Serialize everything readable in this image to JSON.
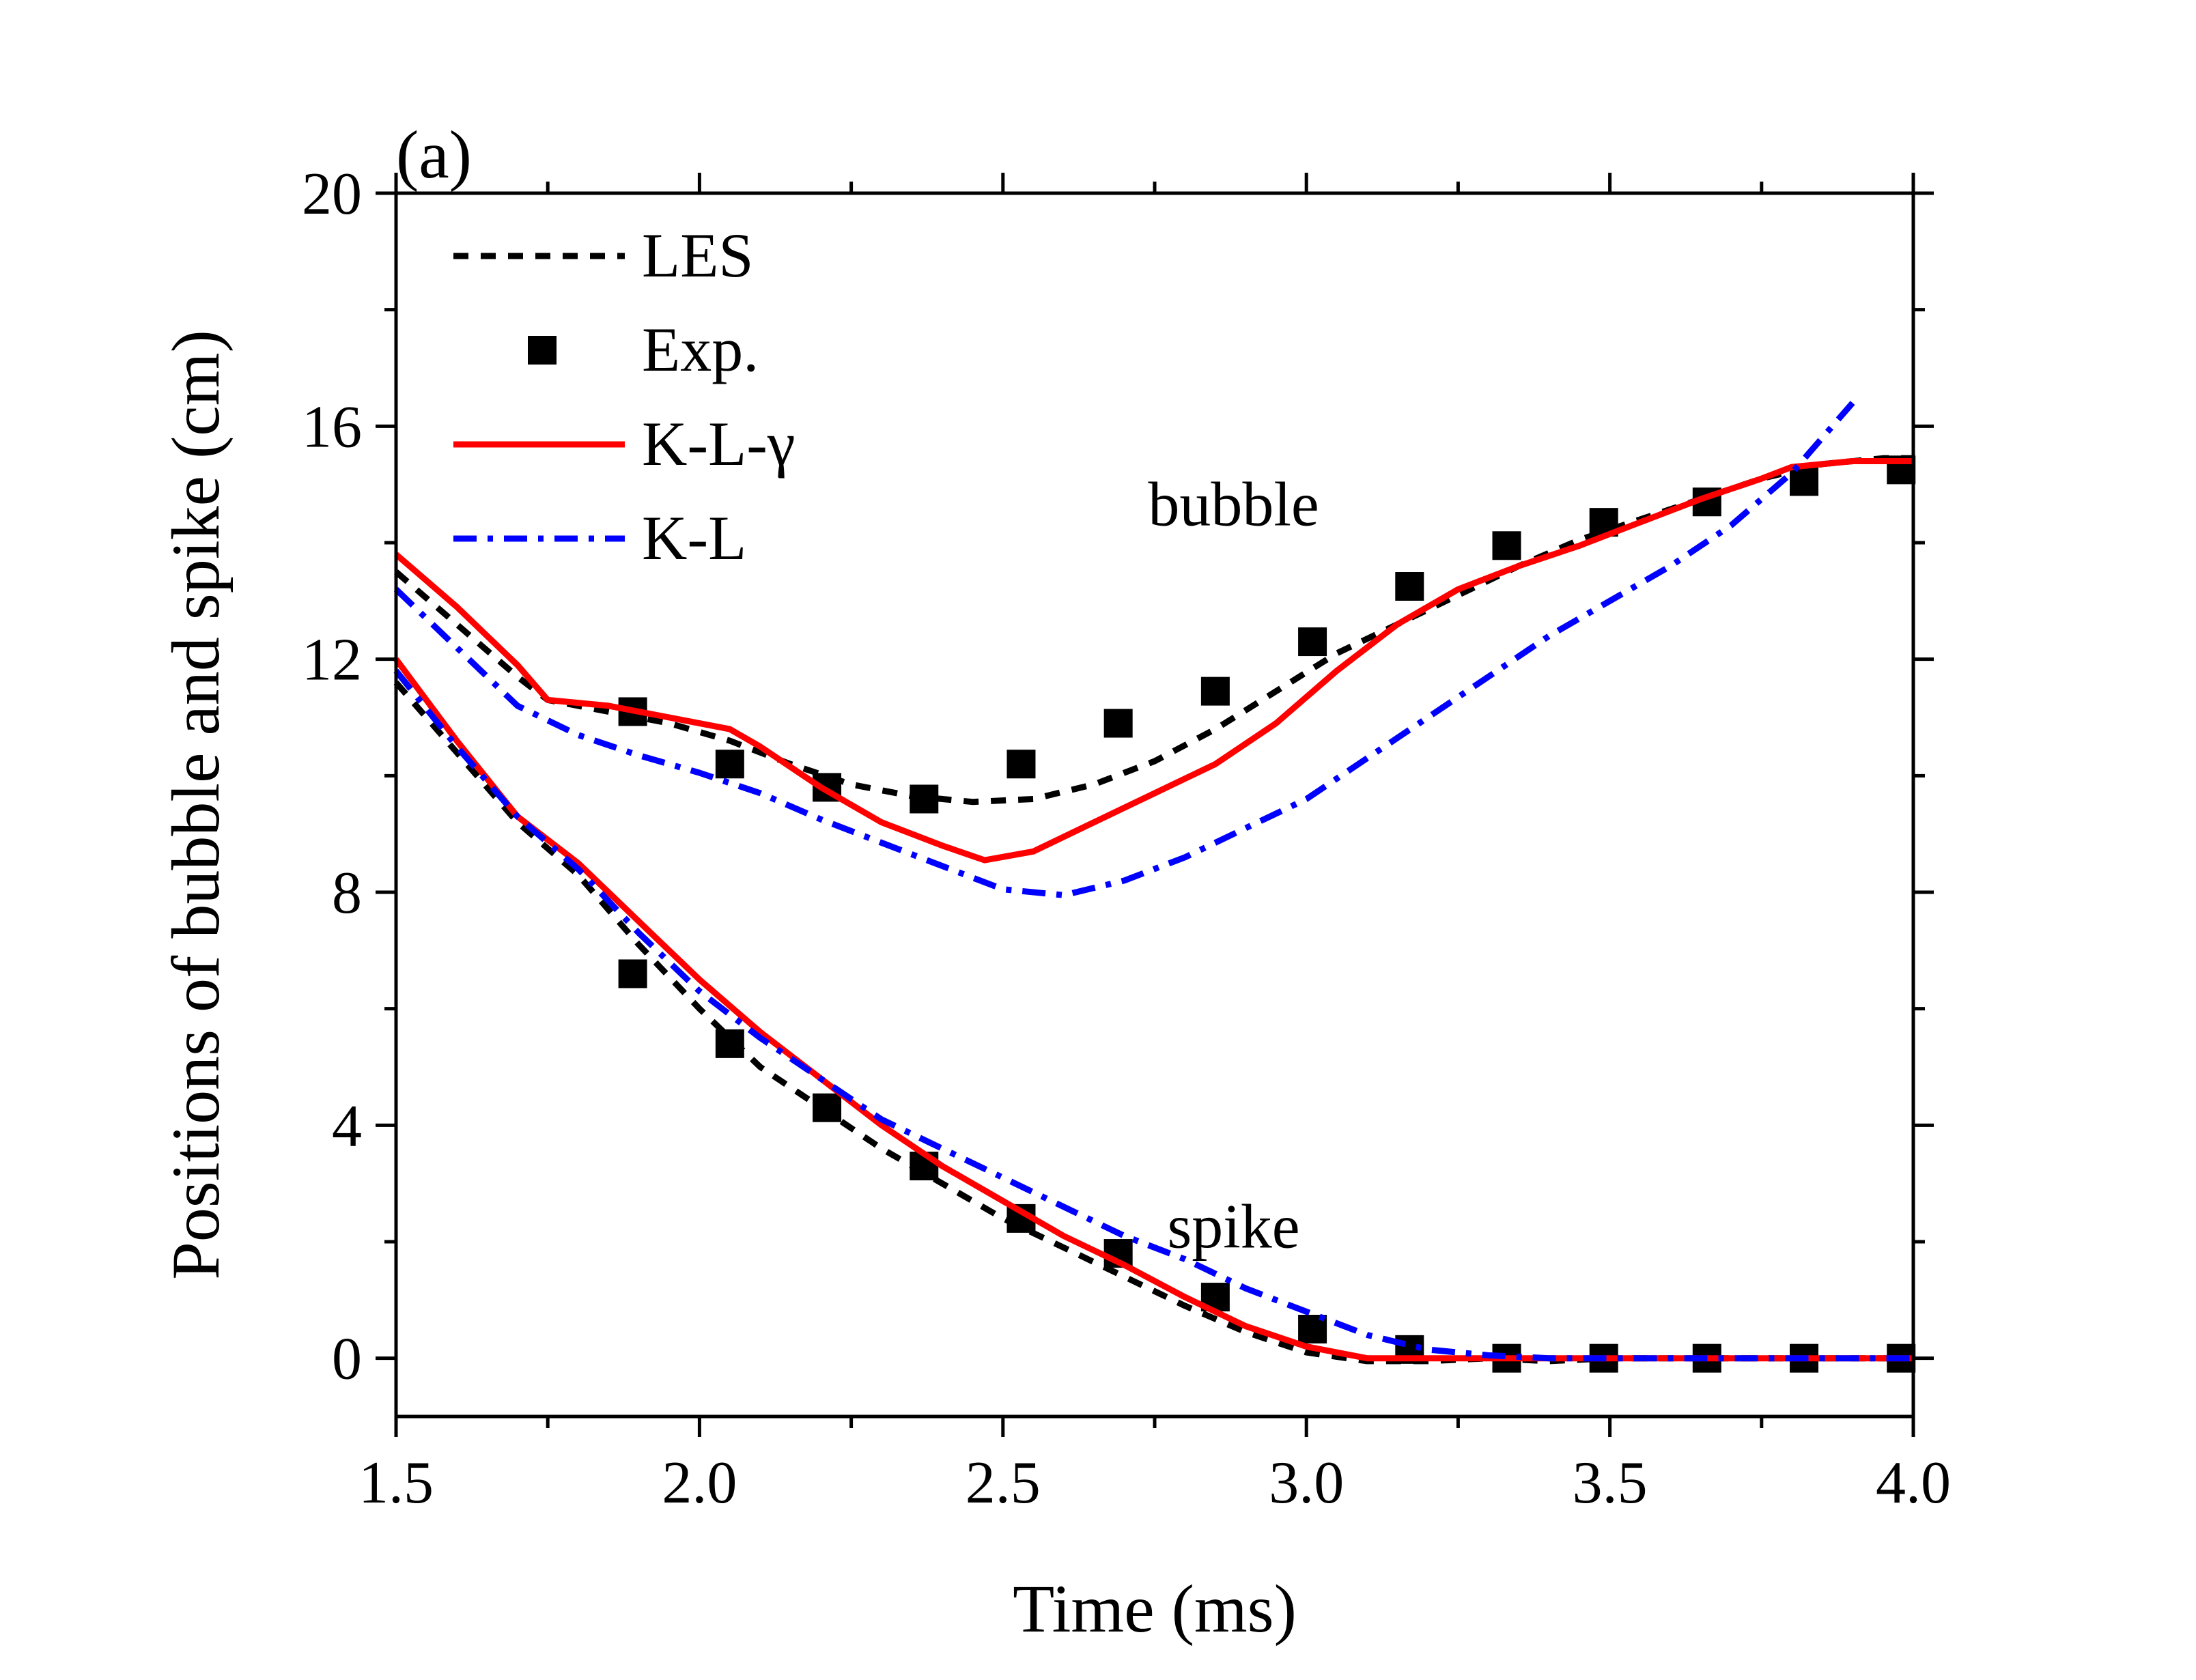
{
  "chart_data": {
    "type": "line",
    "panel_label": "(a)",
    "title": "",
    "xlabel": "Time (ms)",
    "ylabel": "Positions of bubble and spike (cm)",
    "xlim": [
      1.5,
      4.0
    ],
    "ylim": [
      -1,
      20
    ],
    "xticks": [
      1.5,
      2.0,
      2.5,
      3.0,
      3.5,
      4.0
    ],
    "xtick_labels": [
      "1.5",
      "2.0",
      "2.5",
      "3.0",
      "3.5",
      "4.0"
    ],
    "yticks": [
      0,
      4,
      8,
      12,
      16,
      20
    ],
    "ytick_labels": [
      "0",
      "4",
      "8",
      "12",
      "16",
      "20"
    ],
    "grid": false,
    "legend_position": "top-left",
    "annotations": [
      {
        "text": "bubble",
        "x": 2.88,
        "y": 14.3
      },
      {
        "text": "spike",
        "x": 2.88,
        "y": 1.9
      }
    ],
    "series": [
      {
        "name": "LES",
        "style": "dashed",
        "color": "#000000",
        "groups": [
          {
            "label": "bubble",
            "x": [
              1.5,
              1.6,
              1.7,
              1.75,
              1.85,
              1.95,
              2.05,
              2.15,
              2.25,
              2.35,
              2.45,
              2.55,
              2.65,
              2.75,
              2.85,
              2.95,
              3.05,
              3.15,
              3.25,
              3.35,
              3.45,
              3.55,
              3.65,
              3.75,
              3.85,
              3.95,
              4.0
            ],
            "y": [
              13.5,
              12.6,
              11.7,
              11.3,
              11.1,
              10.9,
              10.6,
              10.2,
              9.85,
              9.65,
              9.55,
              9.6,
              9.85,
              10.25,
              10.8,
              11.45,
              12.1,
              12.6,
              13.1,
              13.6,
              14.05,
              14.4,
              14.75,
              15.1,
              15.35,
              15.45,
              15.45
            ]
          },
          {
            "label": "spike",
            "x": [
              1.5,
              1.6,
              1.7,
              1.8,
              1.9,
              2.0,
              2.1,
              2.2,
              2.3,
              2.4,
              2.5,
              2.6,
              2.7,
              2.8,
              2.9,
              3.0,
              3.1,
              3.2,
              3.3,
              3.4,
              3.5,
              3.7,
              3.9,
              4.0
            ],
            "y": [
              11.6,
              10.4,
              9.2,
              8.3,
              7.1,
              6.0,
              5.0,
              4.3,
              3.6,
              3.0,
              2.4,
              1.9,
              1.4,
              0.9,
              0.45,
              0.1,
              -0.05,
              -0.05,
              0.0,
              -0.05,
              0.0,
              0.0,
              0.0,
              0.0
            ]
          }
        ]
      },
      {
        "name": "Exp.",
        "style": "markers",
        "marker": "square",
        "color": "#000000",
        "groups": [
          {
            "label": "bubble",
            "x": [
              1.89,
              2.05,
              2.21,
              2.37,
              2.53,
              2.69,
              2.85,
              3.01,
              3.17,
              3.33,
              3.49,
              3.66,
              3.82,
              3.98
            ],
            "y": [
              11.1,
              10.2,
              9.8,
              9.6,
              10.2,
              10.9,
              11.45,
              12.3,
              13.25,
              13.95,
              14.35,
              14.7,
              15.05,
              15.25
            ]
          },
          {
            "label": "spike",
            "x": [
              1.89,
              2.05,
              2.21,
              2.37,
              2.53,
              2.69,
              2.85,
              3.01,
              3.17,
              3.33,
              3.49,
              3.66,
              3.82,
              3.98
            ],
            "y": [
              6.6,
              5.4,
              4.3,
              3.3,
              2.4,
              1.8,
              1.05,
              0.5,
              0.15,
              0.0,
              0.0,
              0.0,
              0.0,
              0.0
            ]
          }
        ]
      },
      {
        "name": "K-L-γ",
        "style": "solid",
        "color": "#ff0000",
        "groups": [
          {
            "label": "bubble",
            "x": [
              1.5,
              1.6,
              1.7,
              1.75,
              1.85,
              1.95,
              2.05,
              2.1,
              2.2,
              2.3,
              2.4,
              2.47,
              2.55,
              2.65,
              2.75,
              2.85,
              2.95,
              3.05,
              3.15,
              3.25,
              3.35,
              3.45,
              3.55,
              3.65,
              3.75,
              3.8,
              3.9,
              4.0
            ],
            "y": [
              13.8,
              12.9,
              11.9,
              11.3,
              11.2,
              11.0,
              10.8,
              10.5,
              9.8,
              9.2,
              8.8,
              8.55,
              8.7,
              9.2,
              9.7,
              10.2,
              10.9,
              11.8,
              12.6,
              13.2,
              13.6,
              13.95,
              14.35,
              14.75,
              15.1,
              15.3,
              15.4,
              15.4
            ]
          },
          {
            "label": "spike",
            "x": [
              1.5,
              1.6,
              1.7,
              1.8,
              1.9,
              2.0,
              2.1,
              2.2,
              2.3,
              2.4,
              2.5,
              2.6,
              2.7,
              2.8,
              2.9,
              3.0,
              3.1,
              3.2,
              3.3,
              3.4,
              3.5,
              3.7,
              3.9,
              4.0
            ],
            "y": [
              12.0,
              10.6,
              9.3,
              8.5,
              7.5,
              6.5,
              5.6,
              4.8,
              4.0,
              3.3,
              2.7,
              2.1,
              1.6,
              1.05,
              0.55,
              0.2,
              0.0,
              0.0,
              0.0,
              0.0,
              0.0,
              0.0,
              0.0,
              0.0
            ]
          }
        ]
      },
      {
        "name": "K-L",
        "style": "dashdot",
        "color": "#0000ff",
        "groups": [
          {
            "label": "bubble",
            "x": [
              1.5,
              1.6,
              1.7,
              1.8,
              1.9,
              2.0,
              2.1,
              2.2,
              2.3,
              2.4,
              2.5,
              2.6,
              2.7,
              2.8,
              2.9,
              3.0,
              3.1,
              3.2,
              3.3,
              3.4,
              3.5,
              3.6,
              3.7,
              3.8,
              3.9
            ],
            "y": [
              13.2,
              12.2,
              11.2,
              10.7,
              10.35,
              10.05,
              9.7,
              9.25,
              8.85,
              8.45,
              8.05,
              7.95,
              8.2,
              8.6,
              9.1,
              9.6,
              10.3,
              11.0,
              11.7,
              12.4,
              13.0,
              13.6,
              14.3,
              15.2,
              16.4
            ]
          },
          {
            "label": "spike",
            "x": [
              1.5,
              1.6,
              1.7,
              1.8,
              1.9,
              2.0,
              2.1,
              2.2,
              2.3,
              2.4,
              2.5,
              2.6,
              2.7,
              2.8,
              2.9,
              3.0,
              3.1,
              3.2,
              3.3,
              3.4,
              3.5,
              3.7,
              3.9,
              4.0
            ],
            "y": [
              11.8,
              10.5,
              9.3,
              8.4,
              7.3,
              6.3,
              5.5,
              4.8,
              4.1,
              3.6,
              3.1,
              2.6,
              2.1,
              1.7,
              1.2,
              0.8,
              0.4,
              0.15,
              0.05,
              0.0,
              0.0,
              0.0,
              0.0,
              0.0
            ]
          }
        ]
      }
    ]
  }
}
